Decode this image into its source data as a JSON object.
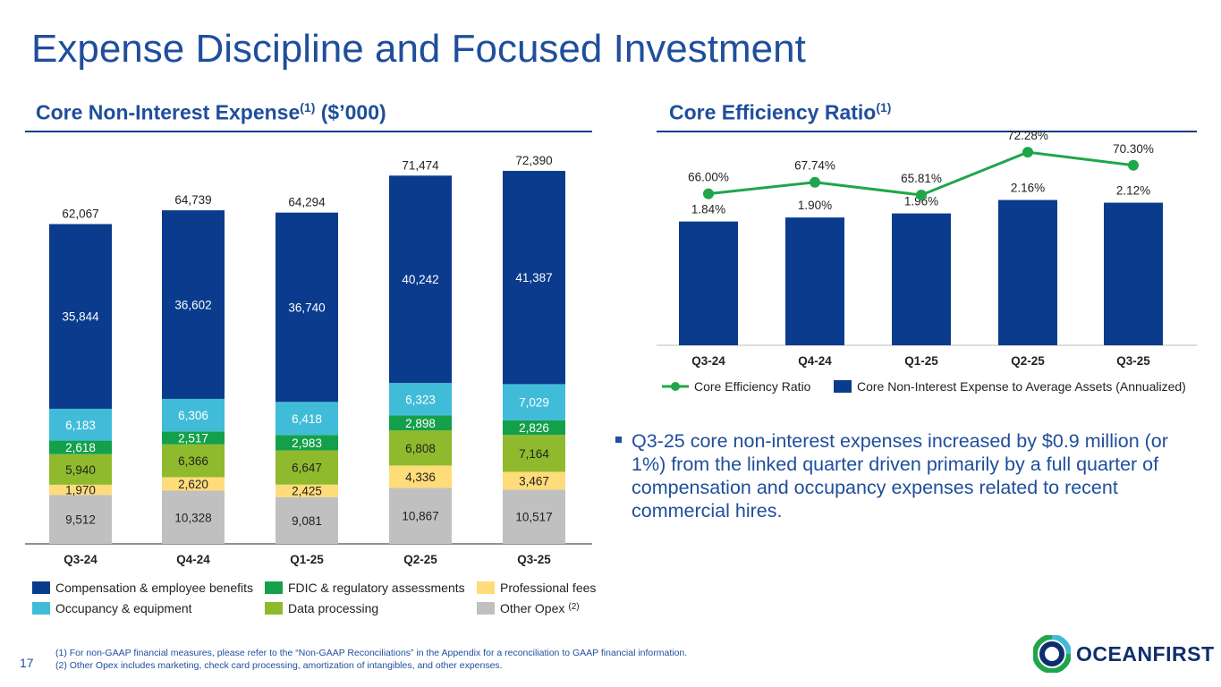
{
  "page": {
    "title": "Expense Discipline and Focused Investment",
    "page_number": "17",
    "footnotes": [
      "(1) For non-GAAP financial measures, please refer to the “Non-GAAP Reconciliations” in the Appendix for a reconciliation to GAAP financial information.",
      "(2) Other Opex includes marketing, check card processing, amortization of intangibles, and other expenses."
    ],
    "bullet": "Q3-25 core non-interest expenses increased by $0.9 million (or 1%) from the linked quarter driven primarily by a full quarter of compensation and occupancy expenses related to recent commercial hires.",
    "logo_text": "OCEANFIRST"
  },
  "colors": {
    "title": "#1f4e9c",
    "compensation": "#0a3b8c",
    "occupancy": "#41bcd8",
    "fdic": "#14a04b",
    "data_processing": "#8fba2d",
    "professional": "#ffdc7a",
    "other": "#c0c0c0",
    "ratio_line": "#1fa64a"
  },
  "chart_data": [
    {
      "type": "bar",
      "stacked": true,
      "title": "Core Non-Interest Expense",
      "title_sup": "(1)",
      "title_suffix": " ($’000)",
      "categories": [
        "Q3-24",
        "Q4-24",
        "Q1-25",
        "Q2-25",
        "Q3-25"
      ],
      "series": [
        {
          "name": "Other Opex",
          "name_sup": "(2)",
          "color_key": "other",
          "values": [
            9512,
            10328,
            9081,
            10867,
            10517
          ],
          "labels": [
            "9,512",
            "10,328",
            "9,081",
            "10,867",
            "10,517"
          ]
        },
        {
          "name": "Professional fees",
          "color_key": "professional",
          "values": [
            1970,
            2620,
            2425,
            4336,
            3467
          ],
          "labels": [
            "1,970",
            "2,620",
            "2,425",
            "4,336",
            "3,467"
          ]
        },
        {
          "name": "Data processing",
          "color_key": "data_processing",
          "values": [
            5940,
            6366,
            6647,
            6808,
            7164
          ],
          "labels": [
            "5,940",
            "6,366",
            "6,647",
            "6,808",
            "7,164"
          ]
        },
        {
          "name": "FDIC & regulatory assessments",
          "color_key": "fdic",
          "values": [
            2618,
            2517,
            2983,
            2898,
            2826
          ],
          "labels": [
            "2,618",
            "2,517",
            "2,983",
            "2,898",
            "2,826"
          ]
        },
        {
          "name": "Occupancy & equipment",
          "color_key": "occupancy",
          "values": [
            6183,
            6306,
            6418,
            6323,
            7029
          ],
          "labels": [
            "6,183",
            "6,306",
            "6,418",
            "6,323",
            "7,029"
          ]
        },
        {
          "name": "Compensation & employee benefits",
          "color_key": "compensation",
          "values": [
            35844,
            36602,
            36740,
            40242,
            41387
          ],
          "labels": [
            "35,844",
            "36,602",
            "36,740",
            "40,242",
            "41,387"
          ]
        }
      ],
      "totals": [
        62067,
        64739,
        64294,
        71474,
        72390
      ],
      "total_labels": [
        "62,067",
        "64,739",
        "64,294",
        "71,474",
        "72,390"
      ],
      "ylim": [
        0,
        75000
      ]
    },
    {
      "type": "bar+line",
      "title": "Core Efficiency Ratio",
      "title_sup": "(1)",
      "categories": [
        "Q3-24",
        "Q4-24",
        "Q1-25",
        "Q2-25",
        "Q3-25"
      ],
      "bars": {
        "name": "Core Non-Interest Expense to Average Assets (Annualized)",
        "values": [
          1.84,
          1.9,
          1.96,
          2.16,
          2.12
        ],
        "labels": [
          "1.84%",
          "1.90%",
          "1.96%",
          "2.16%",
          "2.12%"
        ],
        "ylim": [
          0,
          2.5
        ]
      },
      "line": {
        "name": "Core Efficiency Ratio",
        "values": [
          66.0,
          67.74,
          65.81,
          72.28,
          70.3
        ],
        "labels": [
          "66.00%",
          "67.74%",
          "65.81%",
          "72.28%",
          "70.30%"
        ],
        "ylim": [
          50,
          80
        ]
      }
    }
  ]
}
